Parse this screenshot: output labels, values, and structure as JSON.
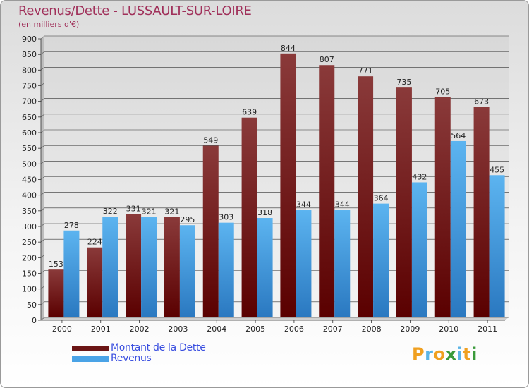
{
  "header": {
    "title": "Revenus/Dette - LUSSAULT-SUR-LOIRE",
    "subtitle": "(en milliers d'€)"
  },
  "colors": {
    "dette": "#6b1515",
    "revenus": "#4aa3e6",
    "title": "#a0305a",
    "legend_text": "#3a4fe0"
  },
  "legend": {
    "items": [
      {
        "label": "Montant de la Dette",
        "color": "#6b1515"
      },
      {
        "label": "Revenus",
        "color": "#4aa3e6"
      }
    ]
  },
  "logo": {
    "text": "Proxiti",
    "letters": [
      "P",
      "r",
      "o",
      "x",
      "i",
      "t",
      "i"
    ],
    "letter_colors": [
      "#f0a020",
      "#5ab4e6",
      "#f0a020",
      "#3a9a3a",
      "#5ab4e6",
      "#f0a020",
      "#3a9a3a"
    ]
  },
  "chart_data": {
    "type": "bar",
    "title": "Revenus/Dette - LUSSAULT-SUR-LOIRE",
    "ylabel": "(en milliers d'€)",
    "xlabel": "",
    "categories": [
      "2000",
      "2001",
      "2002",
      "2003",
      "2004",
      "2005",
      "2006",
      "2007",
      "2008",
      "2009",
      "2010",
      "2011"
    ],
    "series": [
      {
        "name": "Montant de la Dette",
        "values": [
          153,
          224,
          331,
          321,
          549,
          639,
          844,
          807,
          771,
          735,
          705,
          673
        ]
      },
      {
        "name": "Revenus",
        "values": [
          278,
          322,
          321,
          295,
          303,
          318,
          344,
          344,
          364,
          432,
          564,
          455
        ]
      }
    ],
    "ylim": [
      0,
      900
    ],
    "yticks": [
      0,
      50,
      100,
      150,
      200,
      250,
      300,
      350,
      400,
      450,
      500,
      550,
      600,
      650,
      700,
      750,
      800,
      850,
      900
    ],
    "grid": true,
    "legend_position": "bottom-left"
  }
}
